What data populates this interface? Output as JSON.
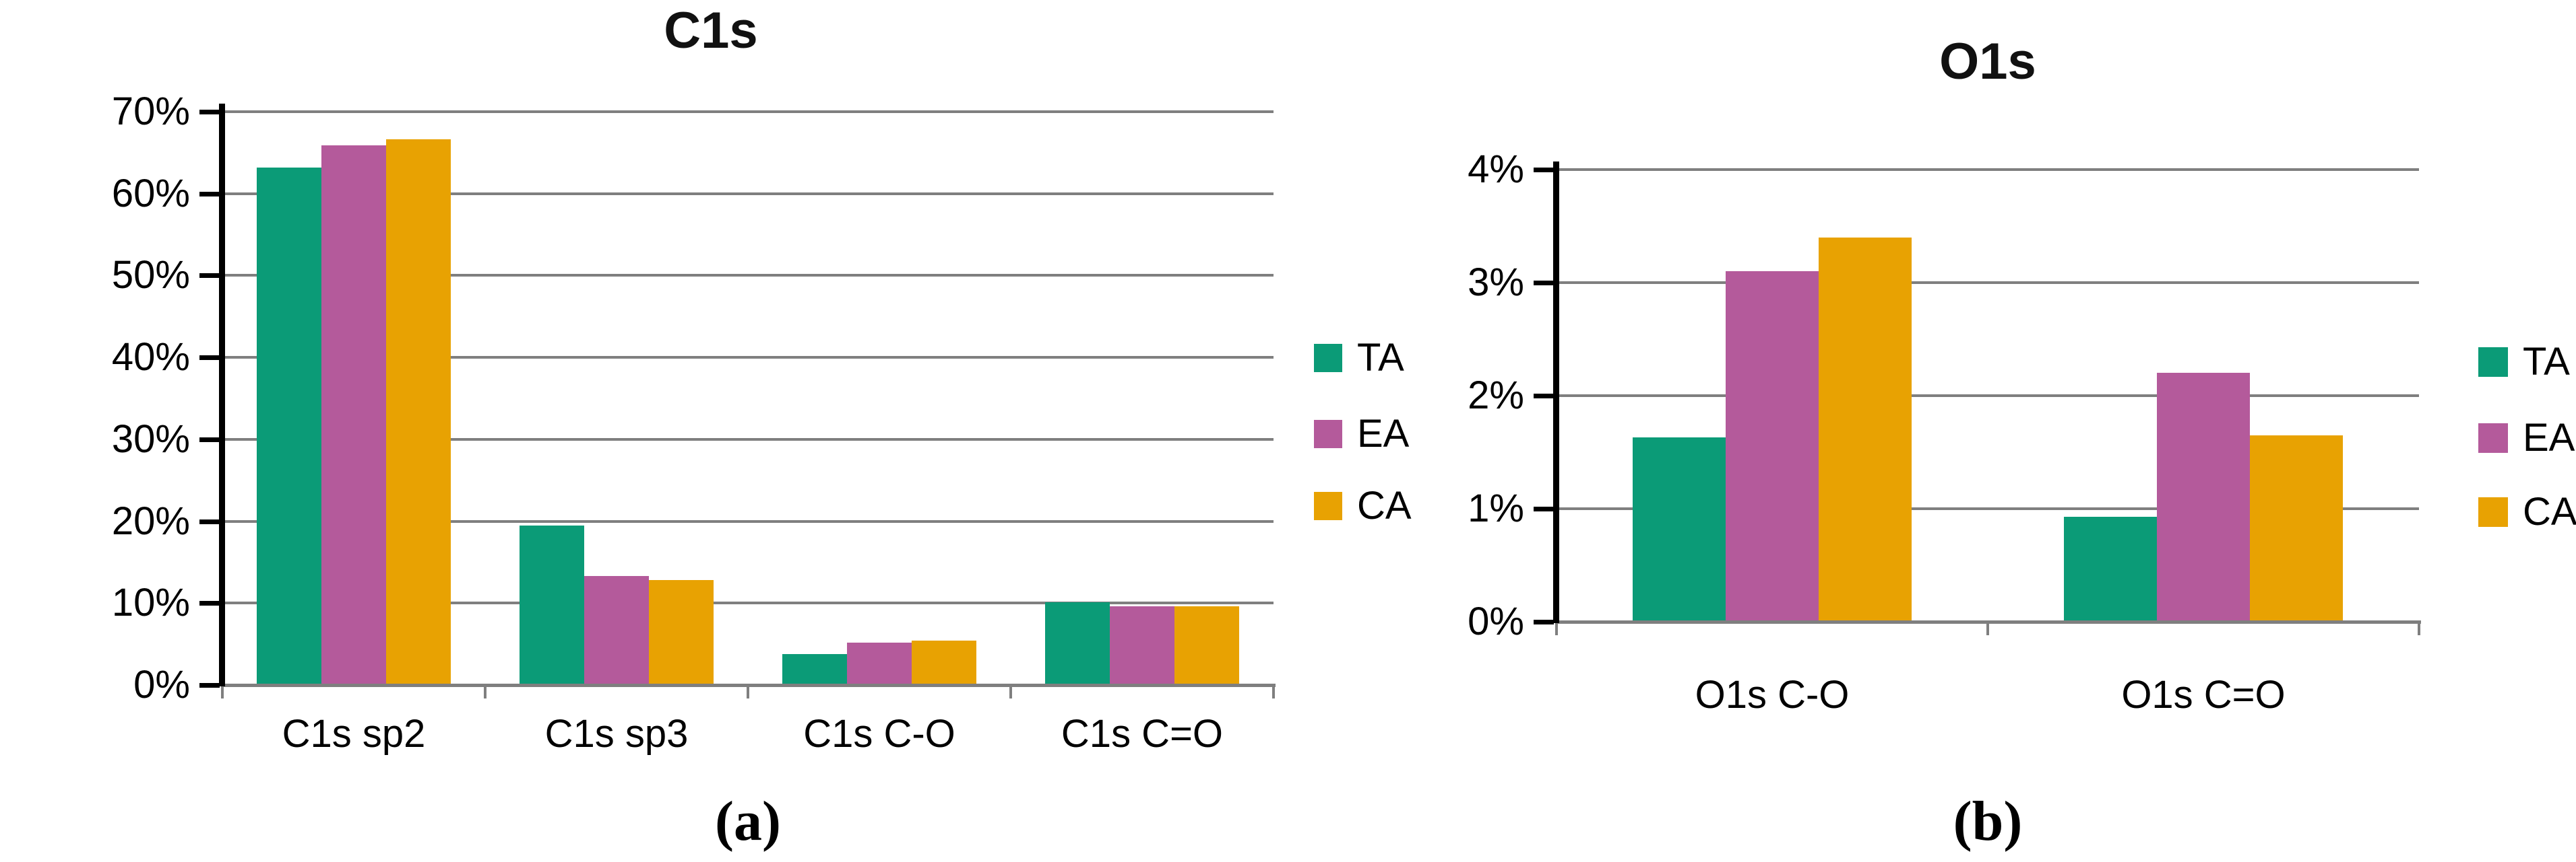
{
  "figure": {
    "background": "#ffffff",
    "gridline_color": "#7f7f7f",
    "axis_color": "#000000",
    "text_color": "#000000"
  },
  "legend": {
    "items": [
      {
        "label": "TA",
        "color": "#0b9b77"
      },
      {
        "label": "EA",
        "color": "#b45a9b"
      },
      {
        "label": "CA",
        "color": "#e8a202"
      }
    ]
  },
  "chart_data": [
    {
      "type": "bar",
      "title": "C1s",
      "caption": "(a)",
      "categories": [
        "C1s sp2",
        "C1s sp3",
        "C1s C-O",
        "C1s C=O"
      ],
      "series": [
        {
          "name": "TA",
          "color": "#0b9b77",
          "values": [
            63.2,
            19.5,
            3.8,
            10.1
          ]
        },
        {
          "name": "EA",
          "color": "#b45a9b",
          "values": [
            65.9,
            13.3,
            5.2,
            9.6
          ]
        },
        {
          "name": "CA",
          "color": "#e8a202",
          "values": [
            66.6,
            12.8,
            5.4,
            9.6
          ]
        }
      ],
      "ylabel": "",
      "xlabel": "",
      "ylim": [
        0,
        70
      ],
      "ytick_step": 10,
      "ytick_labels": [
        "0%",
        "10%",
        "20%",
        "30%",
        "40%",
        "50%",
        "60%",
        "70%"
      ],
      "grid": true,
      "legend_position": "right"
    },
    {
      "type": "bar",
      "title": "O1s",
      "caption": "(b)",
      "categories": [
        "O1s C-O",
        "O1s C=O"
      ],
      "series": [
        {
          "name": "TA",
          "color": "#0b9b77",
          "values": [
            1.63,
            0.93
          ]
        },
        {
          "name": "EA",
          "color": "#b45a9b",
          "values": [
            3.1,
            2.2
          ]
        },
        {
          "name": "CA",
          "color": "#e8a202",
          "values": [
            3.4,
            1.65
          ]
        }
      ],
      "ylabel": "",
      "xlabel": "",
      "ylim": [
        0,
        4
      ],
      "ytick_step": 1,
      "ytick_labels": [
        "0%",
        "1%",
        "2%",
        "3%",
        "4%"
      ],
      "grid": true,
      "legend_position": "right"
    }
  ]
}
